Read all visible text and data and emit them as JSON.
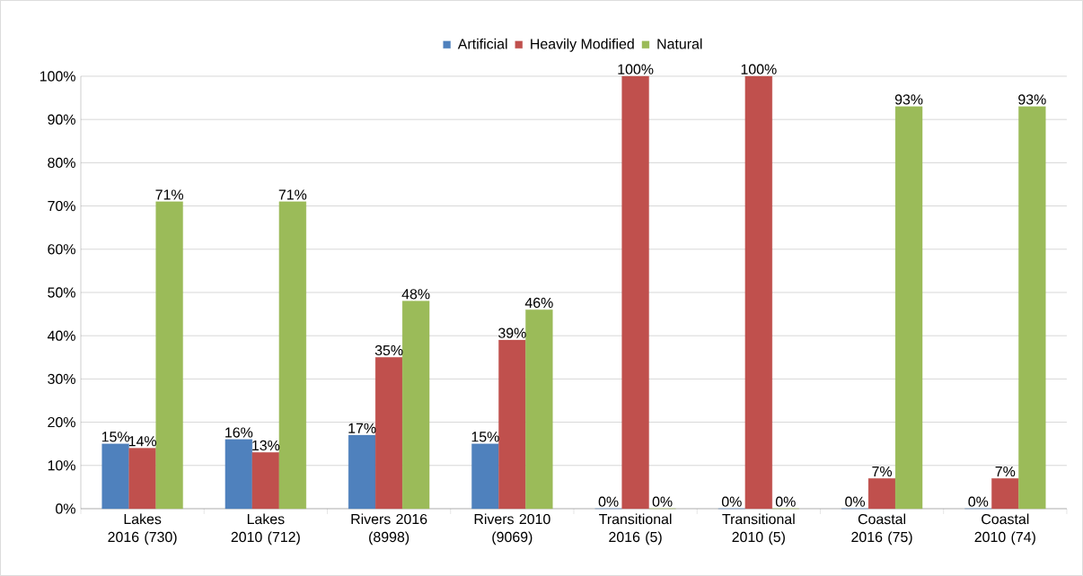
{
  "chart_data": {
    "type": "bar",
    "categories": [
      "Lakes 2016 (730)",
      "Lakes 2010 (712)",
      "Rivers 2016 (8998)",
      "Rivers 2010 (9069)",
      "Transitional 2016 (5)",
      "Transitional 2010 (5)",
      "Coastal 2016 (75)",
      "Coastal 2010 (74)"
    ],
    "series": [
      {
        "name": "Artificial",
        "color": "#4f81bd",
        "values": [
          15,
          16,
          17,
          15,
          0,
          0,
          0,
          0
        ],
        "value_labels": [
          "15%",
          "16%",
          "17%",
          "15%",
          "0%",
          "0%",
          "0%",
          "0%"
        ]
      },
      {
        "name": "Heavily Modified",
        "color": "#c0504d",
        "values": [
          14,
          13,
          35,
          39,
          100,
          100,
          7,
          7
        ],
        "value_labels": [
          "14%",
          "13%",
          "35%",
          "39%",
          "100%",
          "100%",
          "7%",
          "7%"
        ]
      },
      {
        "name": "Natural",
        "color": "#9bbb59",
        "values": [
          71,
          71,
          48,
          46,
          0,
          0,
          93,
          93
        ],
        "value_labels": [
          "71%",
          "71%",
          "48%",
          "46%",
          "0%",
          "0%",
          "93%",
          "93%"
        ]
      }
    ],
    "ylim": [
      0,
      100
    ],
    "yticks": [
      {
        "value": 0,
        "label": "0%"
      },
      {
        "value": 10,
        "label": "10%"
      },
      {
        "value": 20,
        "label": "20%"
      },
      {
        "value": 30,
        "label": "30%"
      },
      {
        "value": 40,
        "label": "40%"
      },
      {
        "value": 50,
        "label": "50%"
      },
      {
        "value": 60,
        "label": "60%"
      },
      {
        "value": 70,
        "label": "70%"
      },
      {
        "value": 80,
        "label": "80%"
      },
      {
        "value": 90,
        "label": "90%"
      },
      {
        "value": 100,
        "label": "100%"
      }
    ],
    "grid": "y",
    "legend": "top"
  }
}
